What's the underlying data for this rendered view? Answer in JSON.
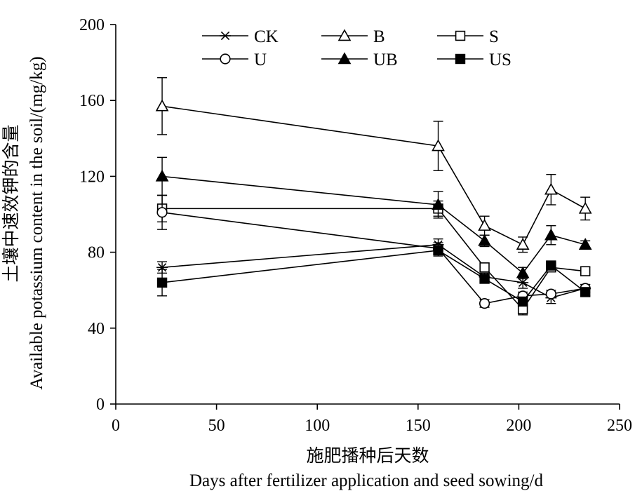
{
  "chart_data": {
    "type": "line",
    "xlabel_cn": "施肥播种后天数",
    "xlabel_en": "Days after fertilizer application and seed sowing/d",
    "ylabel_cn": "土壤中速效钾的含量",
    "ylabel_en": "Available potassium content in the soil/(mg/kg)",
    "xlim": [
      0,
      250
    ],
    "ylim": [
      0,
      200
    ],
    "xticks": [
      0,
      50,
      100,
      150,
      200,
      250
    ],
    "yticks": [
      0,
      40,
      80,
      120,
      160,
      200
    ],
    "grid": false,
    "legend_position": "top-center",
    "x": [
      23,
      160,
      183,
      202,
      216,
      233
    ],
    "series": [
      {
        "name": "CK",
        "marker": "asterisk",
        "values": [
          72,
          84,
          67,
          64,
          56,
          61
        ],
        "errors": [
          3,
          3,
          2,
          3,
          3,
          2
        ]
      },
      {
        "name": "B",
        "marker": "triangle-open",
        "values": [
          157,
          136,
          94,
          84,
          113,
          103
        ],
        "errors": [
          15,
          13,
          5,
          4,
          8,
          6
        ]
      },
      {
        "name": "S",
        "marker": "square-open",
        "values": [
          103,
          103,
          72,
          50,
          72,
          70
        ],
        "errors": [
          7,
          4,
          2,
          3,
          2,
          2
        ]
      },
      {
        "name": "U",
        "marker": "circle-open",
        "values": [
          101,
          82,
          53,
          57,
          58,
          61
        ],
        "errors": [
          9,
          3,
          2,
          2,
          2,
          2
        ]
      },
      {
        "name": "UB",
        "marker": "triangle-filled",
        "values": [
          120,
          105,
          86,
          69,
          89,
          84
        ],
        "errors": [
          10,
          7,
          3,
          3,
          5,
          2
        ]
      },
      {
        "name": "US",
        "marker": "square-filled",
        "values": [
          64,
          81,
          66,
          54,
          73,
          59
        ],
        "errors": [
          7,
          3,
          2,
          2,
          2,
          2
        ]
      }
    ]
  }
}
